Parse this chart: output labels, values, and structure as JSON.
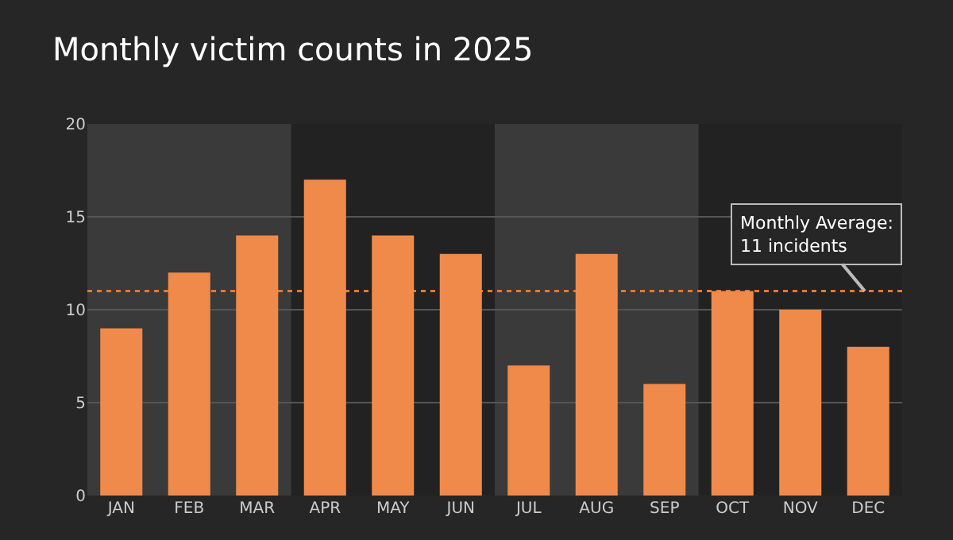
{
  "chart_data": {
    "type": "bar",
    "title": "Monthly victim counts in 2025",
    "categories": [
      "JAN",
      "FEB",
      "MAR",
      "APR",
      "MAY",
      "JUN",
      "JUL",
      "AUG",
      "SEP",
      "OCT",
      "NOV",
      "DEC"
    ],
    "values": [
      9,
      12,
      14,
      17,
      14,
      13,
      7,
      13,
      6,
      11,
      10,
      8
    ],
    "color": "#f08a4b",
    "ylim": [
      0,
      20
    ],
    "yticks": [
      0,
      5,
      10,
      15,
      20
    ],
    "grid": "y",
    "ref_lines": [
      {
        "axis": "y",
        "value": 11,
        "label": "Monthly Average:\n11 incidents",
        "color": "#e8772e",
        "line_style": "dotted"
      }
    ],
    "bands": [
      {
        "axis": "x",
        "from": "JAN",
        "to": "MAR",
        "color": "#3a3a3a"
      },
      {
        "axis": "x",
        "from": "JUL",
        "to": "SEP",
        "color": "#3a3a3a"
      }
    ]
  }
}
